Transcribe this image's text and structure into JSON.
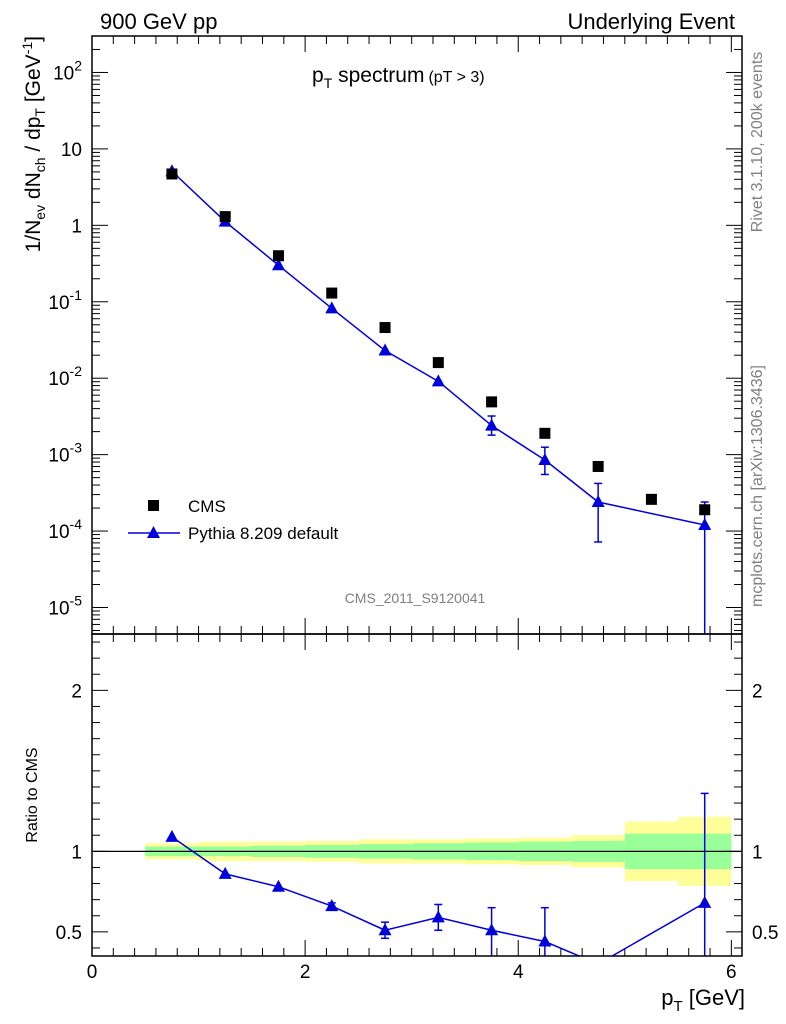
{
  "header": {
    "left": "900 GeV pp",
    "right": "Underlying Event"
  },
  "side_text": {
    "top": "Rivet 3.1.10,  200k events",
    "bottom": "mcplots.cern.ch [arXiv:1306.3436]"
  },
  "watermark": "CMS_2011_S9120041",
  "chart_data": [
    {
      "type": "scatter",
      "title": "p_T spectrum",
      "title_main": "p",
      "title_sub": "T",
      "title_rest": " spectrum",
      "title_cut": "(pT >  3)",
      "ylabel": "1/N_ev dN_ch / dp_T [GeV^-1]",
      "yscale": "log",
      "ylim": [
        4.5e-06,
        300
      ],
      "xlim": [
        0,
        6.1
      ],
      "y_tick_labels": [
        "10^-5",
        "10^-4",
        "10^-3",
        "10^-2",
        "10^-1",
        "1",
        "10",
        "10^2"
      ],
      "legend_position": "bottom-left",
      "series": [
        {
          "name": "CMS",
          "color": "#000000",
          "marker": "square",
          "x": [
            0.75,
            1.25,
            1.75,
            2.25,
            2.75,
            3.25,
            3.75,
            4.25,
            4.75,
            5.25,
            5.75
          ],
          "y": [
            4.7,
            1.3,
            0.4,
            0.13,
            0.046,
            0.016,
            0.0049,
            0.0019,
            0.0007,
            0.00026,
            0.00019
          ]
        },
        {
          "name": "Pythia 8.209 default",
          "color": "#0000dd",
          "marker": "triangle",
          "x": [
            0.75,
            1.25,
            1.75,
            2.25,
            2.75,
            3.25,
            3.75,
            4.25,
            4.75,
            5.75
          ],
          "y": [
            5.1,
            1.12,
            0.3,
            0.082,
            0.023,
            0.0091,
            0.0024,
            0.00085,
            0.00024,
            0.00012
          ],
          "yerr_low": [
            0,
            0,
            0,
            0,
            0,
            0,
            0.0006,
            0.0003,
            0.000168,
            0.00012
          ],
          "yerr_high": [
            0,
            0,
            0,
            0,
            0,
            0,
            0.0008,
            0.0004,
            0.00018,
            0.00012
          ]
        }
      ]
    },
    {
      "type": "line",
      "ylabel": "Ratio to CMS",
      "xlabel": "p_T [GeV]",
      "xlabel_main": "p",
      "xlabel_sub": "T",
      "xlabel_rest": " [GeV]",
      "xlim": [
        0,
        6.1
      ],
      "ylim": [
        0.35,
        2.35
      ],
      "x_ticks": [
        0,
        2,
        4,
        6
      ],
      "y_ticks": [
        0.5,
        1,
        2
      ],
      "reference_line": 1,
      "bands": {
        "x_edges": [
          0.5,
          1.0,
          1.5,
          2.0,
          2.5,
          3.0,
          3.5,
          4.0,
          4.5,
          5.0,
          5.5,
          6.0
        ],
        "yellow_half_width": [
          0.05,
          0.06,
          0.06,
          0.065,
          0.075,
          0.075,
          0.08,
          0.085,
          0.1,
          0.185,
          0.215
        ],
        "green_half_width": [
          0.03,
          0.03,
          0.035,
          0.04,
          0.045,
          0.05,
          0.055,
          0.06,
          0.065,
          0.11,
          0.11
        ],
        "yellow_color": "#ffff99",
        "green_color": "#99ff99"
      },
      "series": [
        {
          "name": "Pythia 8.209 default",
          "color": "#0000dd",
          "x": [
            0.75,
            1.25,
            1.75,
            2.25,
            2.75,
            3.25,
            3.75,
            4.25,
            4.75,
            5.75
          ],
          "y": [
            1.09,
            0.86,
            0.78,
            0.66,
            0.51,
            0.59,
            0.51,
            0.44,
            0.3,
            0.68
          ],
          "yerr_low": [
            0,
            0,
            0,
            0.02,
            0.05,
            0.08,
            0.17,
            0.2,
            0,
            0.68
          ],
          "yerr_high": [
            0,
            0,
            0,
            0.02,
            0.05,
            0.08,
            0.14,
            0.21,
            0,
            0.68
          ]
        }
      ]
    }
  ]
}
